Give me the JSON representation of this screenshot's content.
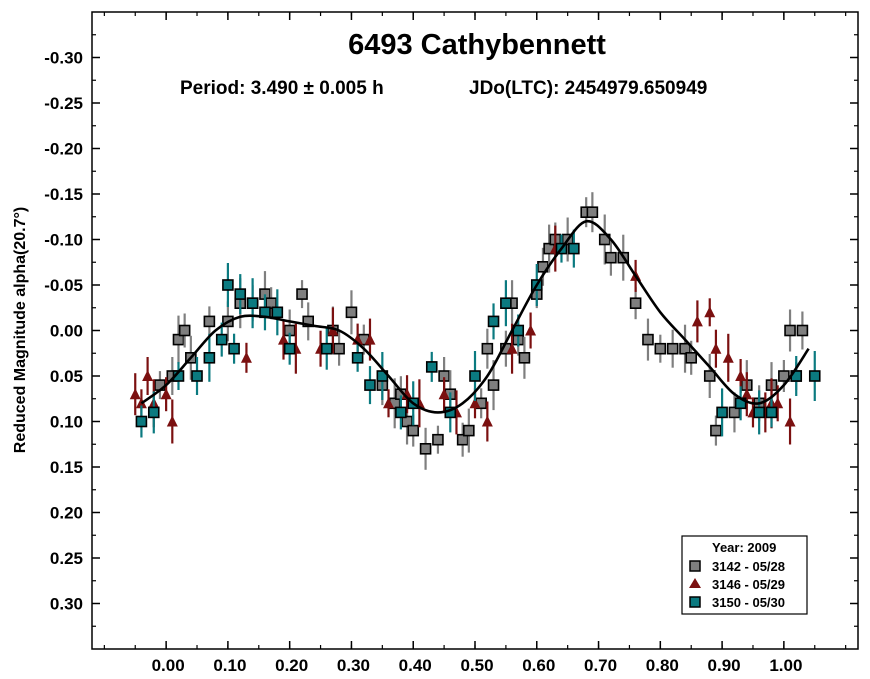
{
  "chart_data": {
    "type": "scatter",
    "title": "6493 Cathybennett",
    "subtitle_period": "Period: 3.490 ± 0.005 h",
    "subtitle_epoch": "JDo(LTC): 2454979.650949",
    "xlabel": "",
    "ylabel": "Reduced Magnitude alpha(20.7°)",
    "xlim": [
      -0.12,
      1.12
    ],
    "ylim": [
      -0.35,
      0.35
    ],
    "y_inverted": true,
    "xticks": [
      0.0,
      0.1,
      0.2,
      0.3,
      0.4,
      0.5,
      0.6,
      0.7,
      0.8,
      0.9,
      1.0
    ],
    "xtick_labels": [
      "0.00",
      "0.10",
      "0.20",
      "0.30",
      "0.40",
      "0.50",
      "0.60",
      "0.70",
      "0.80",
      "0.90",
      "1.00"
    ],
    "yticks": [
      -0.3,
      -0.25,
      -0.2,
      -0.15,
      -0.1,
      -0.05,
      0.0,
      0.05,
      0.1,
      0.15,
      0.2,
      0.25,
      0.3
    ],
    "ytick_labels": [
      "-0.30",
      "-0.25",
      "-0.20",
      "-0.15",
      "-0.10",
      "-0.05",
      "0.00",
      "0.05",
      "0.10",
      "0.15",
      "0.20",
      "0.25",
      "0.30"
    ],
    "grid": false,
    "legend": {
      "title": "Year: 2009",
      "placement": "bottom-right",
      "entries": [
        "3142 - 05/28",
        "3146 - 05/29",
        "3150 - 05/30"
      ]
    },
    "series": [
      {
        "name": "3142 - 05/28",
        "marker": "square",
        "color": "#7f7f7f",
        "points": [
          [
            -0.01,
            0.06
          ],
          [
            0.01,
            0.05
          ],
          [
            0.02,
            0.01
          ],
          [
            0.03,
            0.0
          ],
          [
            0.04,
            0.03
          ],
          [
            0.07,
            -0.01
          ],
          [
            0.1,
            -0.01
          ],
          [
            0.12,
            -0.03
          ],
          [
            0.14,
            -0.03
          ],
          [
            0.16,
            -0.04
          ],
          [
            0.17,
            -0.03
          ],
          [
            0.2,
            0.0
          ],
          [
            0.22,
            -0.04
          ],
          [
            0.23,
            -0.01
          ],
          [
            0.27,
            0.0
          ],
          [
            0.28,
            0.02
          ],
          [
            0.3,
            -0.02
          ],
          [
            0.32,
            0.01
          ],
          [
            0.35,
            0.06
          ],
          [
            0.37,
            0.08
          ],
          [
            0.38,
            0.07
          ],
          [
            0.39,
            0.1
          ],
          [
            0.4,
            0.11
          ],
          [
            0.42,
            0.13
          ],
          [
            0.44,
            0.12
          ],
          [
            0.45,
            0.05
          ],
          [
            0.46,
            0.07
          ],
          [
            0.48,
            0.12
          ],
          [
            0.49,
            0.11
          ],
          [
            0.51,
            0.08
          ],
          [
            0.52,
            0.02
          ],
          [
            0.53,
            0.06
          ],
          [
            0.55,
            0.02
          ],
          [
            0.56,
            -0.03
          ],
          [
            0.57,
            0.01
          ],
          [
            0.58,
            0.03
          ],
          [
            0.6,
            -0.04
          ],
          [
            0.61,
            -0.07
          ],
          [
            0.62,
            -0.09
          ],
          [
            0.63,
            -0.1
          ],
          [
            0.65,
            -0.1
          ],
          [
            0.68,
            -0.13
          ],
          [
            0.69,
            -0.13
          ],
          [
            0.71,
            -0.1
          ],
          [
            0.72,
            -0.08
          ],
          [
            0.74,
            -0.08
          ],
          [
            0.76,
            -0.03
          ],
          [
            0.78,
            0.01
          ],
          [
            0.8,
            0.02
          ],
          [
            0.82,
            0.02
          ],
          [
            0.84,
            0.02
          ],
          [
            0.85,
            0.03
          ],
          [
            0.88,
            0.05
          ],
          [
            0.89,
            0.11
          ],
          [
            0.92,
            0.09
          ],
          [
            0.94,
            0.06
          ],
          [
            0.96,
            0.08
          ],
          [
            0.98,
            0.06
          ],
          [
            1.0,
            0.05
          ],
          [
            1.01,
            0.0
          ],
          [
            1.02,
            0.05
          ],
          [
            1.03,
            0.0
          ]
        ]
      },
      {
        "name": "3146 - 05/29",
        "marker": "triangle",
        "color": "#7b1010",
        "points": [
          [
            -0.05,
            0.07
          ],
          [
            -0.04,
            0.08
          ],
          [
            -0.03,
            0.05
          ],
          [
            -0.02,
            0.08
          ],
          [
            0.0,
            0.07
          ],
          [
            0.01,
            0.1
          ],
          [
            0.13,
            0.03
          ],
          [
            0.19,
            0.01
          ],
          [
            0.21,
            0.02
          ],
          [
            0.25,
            0.02
          ],
          [
            0.27,
            0.0
          ],
          [
            0.31,
            0.01
          ],
          [
            0.33,
            0.01
          ],
          [
            0.36,
            0.08
          ],
          [
            0.39,
            0.07
          ],
          [
            0.41,
            0.08
          ],
          [
            0.45,
            0.07
          ],
          [
            0.47,
            0.09
          ],
          [
            0.5,
            0.08
          ],
          [
            0.52,
            0.1
          ],
          [
            0.56,
            0.02
          ],
          [
            0.59,
            0.0
          ],
          [
            0.63,
            -0.09
          ],
          [
            0.76,
            -0.06
          ],
          [
            0.86,
            -0.01
          ],
          [
            0.88,
            -0.02
          ],
          [
            0.89,
            0.02
          ],
          [
            0.91,
            0.03
          ],
          [
            0.93,
            0.05
          ],
          [
            0.94,
            0.07
          ],
          [
            0.95,
            0.09
          ],
          [
            0.97,
            0.09
          ],
          [
            0.98,
            0.08
          ],
          [
            0.99,
            0.08
          ],
          [
            1.01,
            0.1
          ]
        ]
      },
      {
        "name": "3150 - 05/30",
        "marker": "square",
        "color": "#0b7a80",
        "points": [
          [
            -0.04,
            0.1
          ],
          [
            -0.02,
            0.09
          ],
          [
            0.02,
            0.05
          ],
          [
            0.05,
            0.05
          ],
          [
            0.07,
            0.03
          ],
          [
            0.09,
            0.01
          ],
          [
            0.1,
            -0.05
          ],
          [
            0.11,
            0.02
          ],
          [
            0.12,
            -0.04
          ],
          [
            0.14,
            -0.03
          ],
          [
            0.16,
            -0.02
          ],
          [
            0.18,
            -0.02
          ],
          [
            0.2,
            0.02
          ],
          [
            0.26,
            0.02
          ],
          [
            0.31,
            0.03
          ],
          [
            0.33,
            0.06
          ],
          [
            0.35,
            0.05
          ],
          [
            0.38,
            0.09
          ],
          [
            0.4,
            0.08
          ],
          [
            0.43,
            0.04
          ],
          [
            0.46,
            0.09
          ],
          [
            0.5,
            0.05
          ],
          [
            0.53,
            -0.01
          ],
          [
            0.55,
            -0.03
          ],
          [
            0.57,
            0.0
          ],
          [
            0.6,
            -0.05
          ],
          [
            0.64,
            -0.09
          ],
          [
            0.66,
            -0.09
          ],
          [
            0.9,
            0.09
          ],
          [
            0.93,
            0.08
          ],
          [
            0.96,
            0.09
          ],
          [
            0.98,
            0.09
          ],
          [
            1.02,
            0.05
          ],
          [
            1.05,
            0.05
          ]
        ]
      }
    ],
    "fit_curve": {
      "name": "Fourier fit",
      "x": [
        -0.04,
        0.0,
        0.04,
        0.08,
        0.12,
        0.16,
        0.2,
        0.24,
        0.28,
        0.32,
        0.36,
        0.4,
        0.44,
        0.48,
        0.52,
        0.56,
        0.6,
        0.64,
        0.68,
        0.72,
        0.76,
        0.8,
        0.84,
        0.88,
        0.92,
        0.96,
        1.0,
        1.04
      ],
      "y": [
        0.08,
        0.06,
        0.03,
        0.0,
        -0.015,
        -0.015,
        -0.01,
        -0.005,
        0.0,
        0.02,
        0.05,
        0.08,
        0.09,
        0.08,
        0.05,
        0.0,
        -0.05,
        -0.09,
        -0.12,
        -0.1,
        -0.06,
        -0.02,
        0.01,
        0.04,
        0.07,
        0.08,
        0.06,
        0.02
      ]
    }
  }
}
